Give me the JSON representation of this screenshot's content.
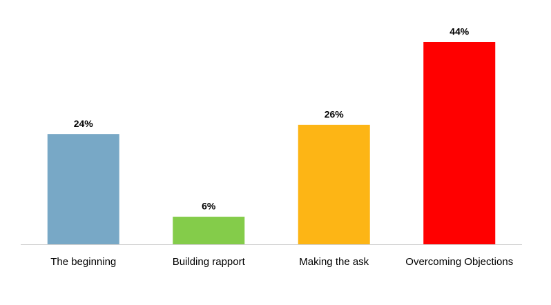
{
  "chart_data": {
    "type": "bar",
    "categories": [
      "The beginning",
      "Building rapport",
      "Making the ask",
      "Overcoming Objections"
    ],
    "values": [
      24,
      6,
      26,
      44
    ],
    "value_labels": [
      "24%",
      "6%",
      "26%",
      "44%"
    ],
    "colors": [
      "#78a8c6",
      "#84cc4a",
      "#fdb515",
      "#ff0000"
    ]
  }
}
